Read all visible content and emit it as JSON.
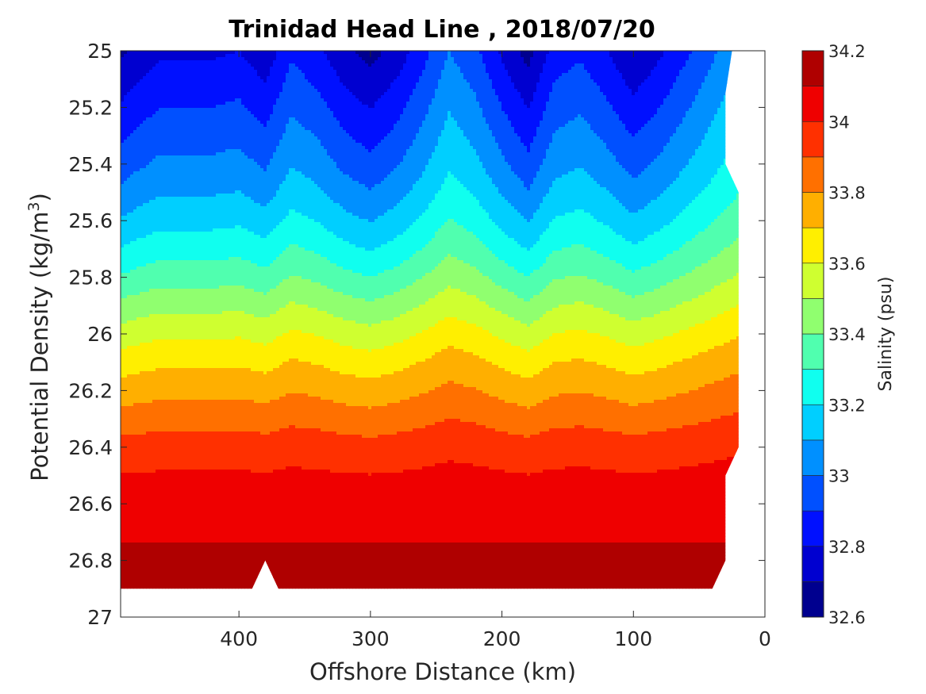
{
  "chart_data": {
    "type": "contour",
    "title": "Trinidad Head Line , 2018/07/20",
    "xlabel": "Offshore Distance (km)",
    "ylabel_main": "Potential Density (kg/m",
    "ylabel_sup": "3",
    "ylabel_close": ")",
    "colorbar_label": "Salinity (psu)",
    "xlim": [
      490,
      0
    ],
    "x_reversed": true,
    "ylim": [
      25,
      27
    ],
    "y_reversed": true,
    "x_ticks": [
      400,
      300,
      200,
      100,
      0
    ],
    "y_ticks": [
      "25",
      "25.2",
      "25.4",
      "25.6",
      "25.8",
      "26",
      "26.2",
      "26.4",
      "26.6",
      "26.8",
      "27"
    ],
    "colorbar_range": [
      32.6,
      34.2
    ],
    "colorbar_ticks": [
      "34.2",
      "34",
      "33.8",
      "33.6",
      "33.4",
      "33.2",
      "33",
      "32.8",
      "32.6"
    ],
    "levels": [
      32.6,
      32.7,
      32.8,
      32.9,
      33.0,
      33.1,
      33.2,
      33.3,
      33.4,
      33.5,
      33.6,
      33.7,
      33.8,
      33.9,
      34.0,
      34.1,
      34.2
    ],
    "level_colors": [
      "#00008f",
      "#0000d0",
      "#0010ff",
      "#0050ff",
      "#0090ff",
      "#00cfff",
      "#10ffef",
      "#50ffaf",
      "#90ff6f",
      "#cfff30",
      "#ffef00",
      "#ffaf00",
      "#ff7000",
      "#ff3000",
      "#ef0000",
      "#af0000"
    ],
    "data_extent": {
      "x_left_km": 490,
      "bottom_sigma": 26.9,
      "notch_x_km": [
        390,
        380,
        370
      ],
      "notch_sigma": [
        26.9,
        26.8,
        26.9
      ],
      "right_edge_x_km": [
        40,
        30,
        30,
        20,
        20,
        30,
        30,
        25
      ],
      "right_edge_sigma": [
        26.9,
        26.8,
        26.5,
        26.4,
        25.5,
        25.4,
        25.15,
        25.0
      ]
    },
    "x": [
      490,
      480,
      460,
      440,
      420,
      400,
      380,
      360,
      340,
      320,
      300,
      280,
      260,
      240,
      220,
      200,
      180,
      160,
      140,
      120,
      100,
      80,
      60,
      40,
      20
    ],
    "y": [
      25.0,
      25.1,
      25.2,
      25.3,
      25.4,
      25.5,
      25.6,
      25.7,
      25.8,
      25.9,
      26.0,
      26.1,
      26.2,
      26.3,
      26.4,
      26.5,
      26.6,
      26.7,
      26.8,
      26.9
    ],
    "y_label_hint": "salinity grid rows correspond to y, columns to x",
    "salinity_base_profile": [
      32.78,
      32.84,
      32.9,
      32.96,
      33.02,
      33.09,
      33.17,
      33.26,
      33.36,
      33.47,
      33.58,
      33.68,
      33.77,
      33.86,
      33.95,
      34.01,
      34.05,
      34.09,
      34.12,
      34.14
    ],
    "salinity_anomaly_by_x": [
      -0.1,
      -0.06,
      0.0,
      0.0,
      0.0,
      0.02,
      -0.05,
      0.1,
      0.04,
      -0.06,
      -0.12,
      -0.04,
      0.08,
      0.22,
      0.14,
      0.0,
      -0.12,
      0.06,
      0.1,
      0.02,
      -0.08,
      0.0,
      0.1,
      0.2,
      0.3
    ]
  }
}
